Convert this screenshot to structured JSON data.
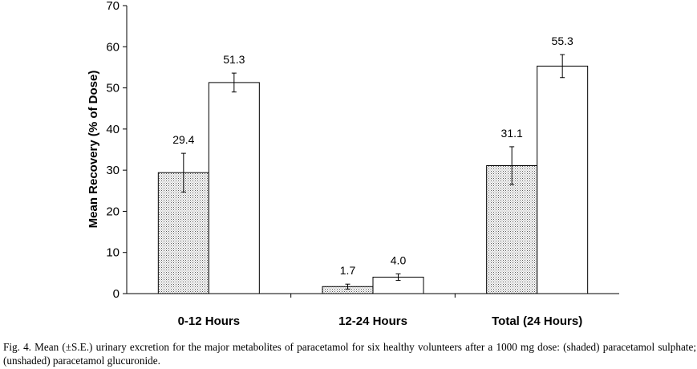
{
  "chart_data": {
    "type": "bar",
    "ylabel": "Mean Recovery (% of Dose)",
    "xlabel": "",
    "ylim": [
      0,
      70
    ],
    "yticks": [
      0,
      10,
      20,
      30,
      40,
      50,
      60,
      70
    ],
    "grid": false,
    "categories": [
      "0-12 Hours",
      "12-24 Hours",
      "Total (24 Hours)"
    ],
    "series": [
      {
        "fill": "dotted-shaded",
        "values": [
          29.4,
          1.7,
          31.1
        ],
        "errors": [
          4.7,
          0.6,
          4.6
        ],
        "labels": [
          "29.4",
          "1.7",
          "31.1"
        ]
      },
      {
        "fill": "white",
        "values": [
          51.3,
          4.0,
          55.3
        ],
        "errors": [
          2.3,
          0.8,
          2.8
        ],
        "labels": [
          "51.3",
          "4.0",
          "55.3"
        ]
      }
    ]
  },
  "caption": "Fig. 4. Mean (±S.E.) urinary excretion for the major metabolites of paracetamol for six healthy volunteers after a 1000 mg dose: (shaded) paracetamol sulphate; (unshaded) paracetamol glucuronide.",
  "colors": {
    "axis": "#000000",
    "bar_stroke": "#000000",
    "shaded_dots": "#555555",
    "unshaded_fill": "#ffffff"
  }
}
